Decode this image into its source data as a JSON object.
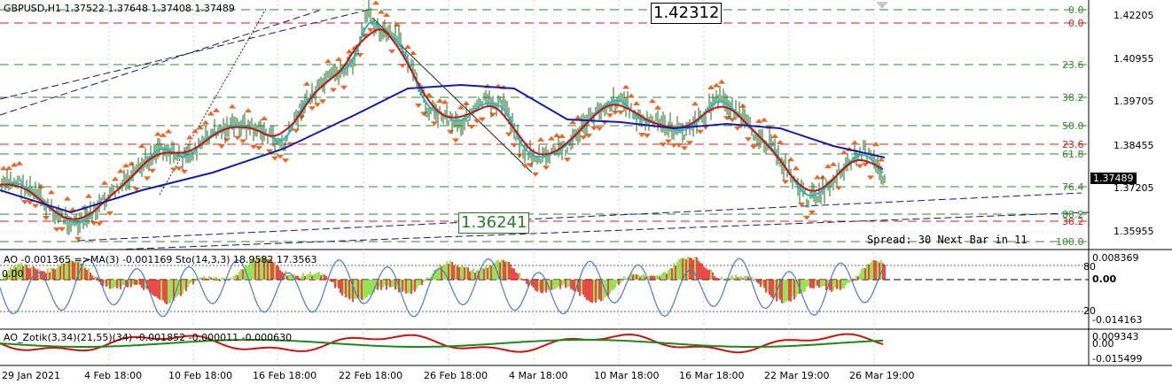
{
  "header": {
    "symbol_info": "GBPUSD,H1  1.37522 1.37648 1.37408 1.37489",
    "ao_ma_info": "AO -0.001365  =>MA(3) -0.001169  Sto(14,3,3) 18.9582 17.3563",
    "ao_zotik_info": "AO_Zotik(3,34)(21,55)(34) -0.001852 -0.000011 -0.000630"
  },
  "labels": {
    "high_label": "1.42312",
    "low_label": "1.36241",
    "current_price": "1.37489",
    "spread": "Spread: 30  Next Bar in 11"
  },
  "price_axis": [
    "1.42205",
    "1.40955",
    "1.39705",
    "1.38455",
    "1.37205",
    "1.35955"
  ],
  "fib_levels": [
    {
      "label": "0.0",
      "color": "#2e8b2e"
    },
    {
      "label": "0.0",
      "color": "#cc2222"
    },
    {
      "label": "23.6",
      "color": "#2e8b2e"
    },
    {
      "label": "38.2",
      "color": "#2e8b2e"
    },
    {
      "label": "50.0",
      "color": "#2e8b2e"
    },
    {
      "label": "23.6",
      "color": "#cc2222"
    },
    {
      "label": "61.8",
      "color": "#2e8b2e"
    },
    {
      "label": "76.4",
      "color": "#2e8b2e"
    },
    {
      "label": "88.2",
      "color": "#2e8b2e"
    },
    {
      "label": "38.2",
      "color": "#cc2222"
    },
    {
      "label": "100.0",
      "color": "#2e8b2e"
    }
  ],
  "ao_axis": {
    "top": "0.008369",
    "zero": "0.00",
    "bottom": "-0.014163",
    "lvl80": "80",
    "lvl20": "20",
    "left_zero": "0.00"
  },
  "zotik_axis": {
    "top": "0.009343",
    "zero": "0.00",
    "bottom": "-0.015499"
  },
  "time_axis": [
    "29 Jan 2021",
    "4 Feb 18:00",
    "10 Feb 18:00",
    "16 Feb 18:00",
    "22 Feb 18:00",
    "26 Feb 18:00",
    "4 Mar 18:00",
    "10 Mar 18:00",
    "16 Mar 18:00",
    "22 Mar 19:00",
    "26 Mar 19:00"
  ],
  "colors": {
    "ma_blue": "#1a1aa8",
    "ma_red": "#cc1111",
    "ma_cyan": "#22b8c8",
    "candles": "#1e6e1e",
    "fractals": "#e8662a",
    "ao_up": "#7cdc2a",
    "ao_down": "#e81c1c",
    "stoch": "#4a7ac8",
    "zotik_red": "#cc1111",
    "zotik_green": "#1a8a1a"
  },
  "icons": {
    "arrow": "down-triangle-icon"
  }
}
